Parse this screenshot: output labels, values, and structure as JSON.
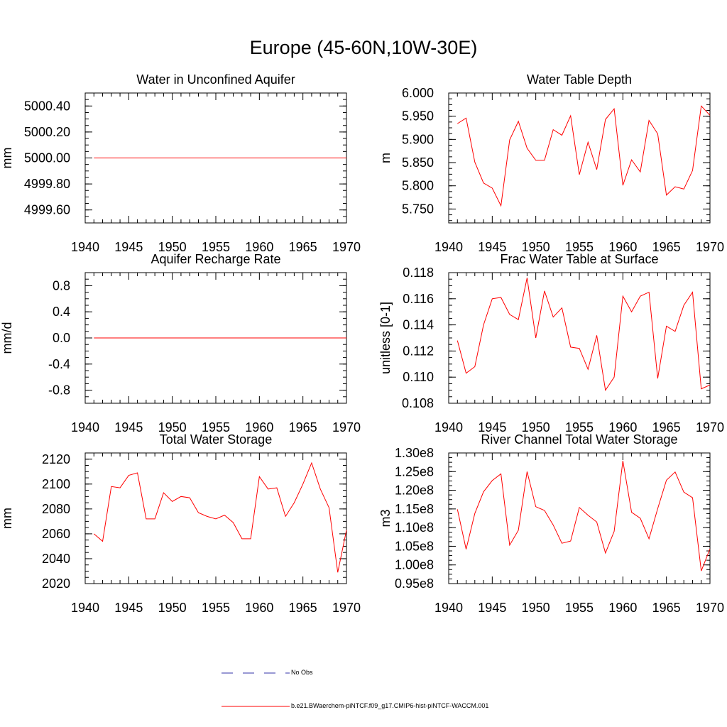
{
  "title": "Europe (45-60N,10W-30E)",
  "colors": {
    "model": "#ff0000",
    "obs": "#3333aa",
    "axis": "#000000"
  },
  "legend": [
    {
      "label": "No Obs",
      "style": "dashed",
      "color": "#3333aa"
    },
    {
      "label": "b.e21.BWaerchem-piNTCF.f09_g17.CMIP6-hist-piNTCF-WACCM.001",
      "style": "solid",
      "color": "#ff0000"
    }
  ],
  "chart_data": [
    {
      "type": "line",
      "title": "Water in Unconfined Aquifer",
      "ylabel": "mm",
      "xlim": [
        1940,
        1970
      ],
      "ylim": [
        4999.5,
        5000.5
      ],
      "xticks": [
        "1940",
        "1945",
        "1950",
        "1955",
        "1960",
        "1965",
        "1970"
      ],
      "yticks": [
        {
          "value": 4999.6,
          "label": "4999.60"
        },
        {
          "value": 4999.8,
          "label": "4999.80"
        },
        {
          "value": 5000.0,
          "label": "5000.00"
        },
        {
          "value": 5000.2,
          "label": "5000.20"
        },
        {
          "value": 5000.4,
          "label": "5000.40"
        }
      ],
      "x": [
        1941,
        1942,
        1943,
        1944,
        1945,
        1946,
        1947,
        1948,
        1949,
        1950,
        1951,
        1952,
        1953,
        1954,
        1955,
        1956,
        1957,
        1958,
        1959,
        1960,
        1961,
        1962,
        1963,
        1964,
        1965,
        1966,
        1967,
        1968,
        1969,
        1970
      ],
      "series": [
        {
          "values": [
            5000,
            5000,
            5000,
            5000,
            5000,
            5000,
            5000,
            5000,
            5000,
            5000,
            5000,
            5000,
            5000,
            5000,
            5000,
            5000,
            5000,
            5000,
            5000,
            5000,
            5000,
            5000,
            5000,
            5000,
            5000,
            5000,
            5000,
            5000,
            5000,
            5000
          ]
        }
      ]
    },
    {
      "type": "line",
      "title": "Water Table Depth",
      "ylabel": "m",
      "xlim": [
        1940,
        1970
      ],
      "ylim": [
        5.72,
        6.0
      ],
      "xticks": [
        "1940",
        "1945",
        "1950",
        "1955",
        "1960",
        "1965",
        "1970"
      ],
      "yticks": [
        {
          "value": 5.75,
          "label": "5.750"
        },
        {
          "value": 5.8,
          "label": "5.800"
        },
        {
          "value": 5.85,
          "label": "5.850"
        },
        {
          "value": 5.9,
          "label": "5.900"
        },
        {
          "value": 5.95,
          "label": "5.950"
        },
        {
          "value": 6.0,
          "label": "6.000"
        }
      ],
      "x": [
        1941,
        1942,
        1943,
        1944,
        1945,
        1946,
        1947,
        1948,
        1949,
        1950,
        1951,
        1952,
        1953,
        1954,
        1955,
        1956,
        1957,
        1958,
        1959,
        1960,
        1961,
        1962,
        1963,
        1964,
        1965,
        1966,
        1967,
        1968,
        1969,
        1970
      ],
      "series": [
        {
          "values": [
            5.934,
            5.946,
            5.851,
            5.806,
            5.795,
            5.757,
            5.899,
            5.939,
            5.881,
            5.855,
            5.855,
            5.921,
            5.909,
            5.951,
            5.824,
            5.894,
            5.835,
            5.943,
            5.966,
            5.801,
            5.856,
            5.83,
            5.941,
            5.912,
            5.78,
            5.798,
            5.793,
            5.833,
            5.972,
            5.952
          ]
        }
      ]
    },
    {
      "type": "line",
      "title": "Aquifer Recharge Rate",
      "ylabel": "mm/d",
      "xlim": [
        1940,
        1970
      ],
      "ylim": [
        -1.0,
        1.0
      ],
      "xticks": [
        "1940",
        "1945",
        "1950",
        "1955",
        "1960",
        "1965",
        "1970"
      ],
      "yticks": [
        {
          "value": -0.8,
          "label": "-0.8"
        },
        {
          "value": -0.4,
          "label": "-0.4"
        },
        {
          "value": 0.0,
          "label": "0.0"
        },
        {
          "value": 0.4,
          "label": "0.4"
        },
        {
          "value": 0.8,
          "label": "0.8"
        }
      ],
      "x": [
        1941,
        1942,
        1943,
        1944,
        1945,
        1946,
        1947,
        1948,
        1949,
        1950,
        1951,
        1952,
        1953,
        1954,
        1955,
        1956,
        1957,
        1958,
        1959,
        1960,
        1961,
        1962,
        1963,
        1964,
        1965,
        1966,
        1967,
        1968,
        1969,
        1970
      ],
      "series": [
        {
          "values": [
            0,
            0,
            0,
            0,
            0,
            0,
            0,
            0,
            0,
            0,
            0,
            0,
            0,
            0,
            0,
            0,
            0,
            0,
            0,
            0,
            0,
            0,
            0,
            0,
            0,
            0,
            0,
            0,
            0,
            0
          ]
        }
      ]
    },
    {
      "type": "line",
      "title": "Frac Water Table at Surface",
      "ylabel": "unitless [0-1]",
      "xlim": [
        1940,
        1970
      ],
      "ylim": [
        0.108,
        0.118
      ],
      "xticks": [
        "1940",
        "1945",
        "1950",
        "1955",
        "1960",
        "1965",
        "1970"
      ],
      "yticks": [
        {
          "value": 0.108,
          "label": "0.108"
        },
        {
          "value": 0.11,
          "label": "0.110"
        },
        {
          "value": 0.112,
          "label": "0.112"
        },
        {
          "value": 0.114,
          "label": "0.114"
        },
        {
          "value": 0.116,
          "label": "0.116"
        },
        {
          "value": 0.118,
          "label": "0.118"
        }
      ],
      "x": [
        1941,
        1942,
        1943,
        1944,
        1945,
        1946,
        1947,
        1948,
        1949,
        1950,
        1951,
        1952,
        1953,
        1954,
        1955,
        1956,
        1957,
        1958,
        1959,
        1960,
        1961,
        1962,
        1963,
        1964,
        1965,
        1966,
        1967,
        1968,
        1969,
        1970
      ],
      "series": [
        {
          "values": [
            0.1128,
            0.1103,
            0.1108,
            0.114,
            0.116,
            0.1161,
            0.1148,
            0.1144,
            0.1176,
            0.113,
            0.1166,
            0.1146,
            0.1153,
            0.1123,
            0.1122,
            0.1106,
            0.1132,
            0.109,
            0.11,
            0.1162,
            0.115,
            0.1162,
            0.1165,
            0.1099,
            0.1139,
            0.1135,
            0.1155,
            0.1165,
            0.1091,
            0.1094
          ]
        }
      ]
    },
    {
      "type": "line",
      "title": "Total Water Storage",
      "ylabel": "mm",
      "xlim": [
        1940,
        1970
      ],
      "ylim": [
        2020,
        2125
      ],
      "xticks": [
        "1940",
        "1945",
        "1950",
        "1955",
        "1960",
        "1965",
        "1970"
      ],
      "yticks": [
        {
          "value": 2020,
          "label": "2020"
        },
        {
          "value": 2040,
          "label": "2040"
        },
        {
          "value": 2060,
          "label": "2060"
        },
        {
          "value": 2080,
          "label": "2080"
        },
        {
          "value": 2100,
          "label": "2100"
        },
        {
          "value": 2120,
          "label": "2120"
        }
      ],
      "x": [
        1941,
        1942,
        1943,
        1944,
        1945,
        1946,
        1947,
        1948,
        1949,
        1950,
        1951,
        1952,
        1953,
        1954,
        1955,
        1956,
        1957,
        1958,
        1959,
        1960,
        1961,
        1962,
        1963,
        1964,
        1965,
        1966,
        1967,
        1968,
        1969,
        1970
      ],
      "series": [
        {
          "values": [
            2060,
            2054,
            2098,
            2097,
            2107,
            2109,
            2072,
            2072,
            2093,
            2086,
            2090,
            2089,
            2077,
            2074,
            2072,
            2075,
            2069,
            2056,
            2056,
            2106,
            2096,
            2097,
            2074,
            2085,
            2100,
            2117,
            2096,
            2081,
            2029,
            2063
          ]
        }
      ]
    },
    {
      "type": "line",
      "title": "River Channel Total Water Storage",
      "ylabel": "m3",
      "xlim": [
        1940,
        1970
      ],
      "ylim": [
        95000000.0,
        130000000.0
      ],
      "xticks": [
        "1940",
        "1945",
        "1950",
        "1955",
        "1960",
        "1965",
        "1970"
      ],
      "yticks": [
        {
          "value": 95000000.0,
          "label": "0.95e8"
        },
        {
          "value": 100000000.0,
          "label": "1.00e8"
        },
        {
          "value": 105000000.0,
          "label": "1.05e8"
        },
        {
          "value": 110000000.0,
          "label": "1.10e8"
        },
        {
          "value": 115000000.0,
          "label": "1.15e8"
        },
        {
          "value": 120000000.0,
          "label": "1.20e8"
        },
        {
          "value": 125000000.0,
          "label": "1.25e8"
        },
        {
          "value": 130000000.0,
          "label": "1.30e8"
        }
      ],
      "x": [
        1941,
        1942,
        1943,
        1944,
        1945,
        1946,
        1947,
        1948,
        1949,
        1950,
        1951,
        1952,
        1953,
        1954,
        1955,
        1956,
        1957,
        1958,
        1959,
        1960,
        1961,
        1962,
        1963,
        1964,
        1965,
        1966,
        1967,
        1968,
        1969,
        1970
      ],
      "series": [
        {
          "values": [
            114900000.0,
            104200000.0,
            113800000.0,
            119600000.0,
            122600000.0,
            124400000.0,
            105300000.0,
            109300000.0,
            125000000.0,
            115600000.0,
            114600000.0,
            110700000.0,
            105800000.0,
            106400000.0,
            115400000.0,
            113300000.0,
            111500000.0,
            103200000.0,
            109000000.0,
            127900000.0,
            114100000.0,
            112500000.0,
            107000000.0,
            115100000.0,
            122700000.0,
            124900000.0,
            119500000.0,
            118000000.0,
            98400000.0,
            104300000.0
          ]
        }
      ]
    }
  ]
}
